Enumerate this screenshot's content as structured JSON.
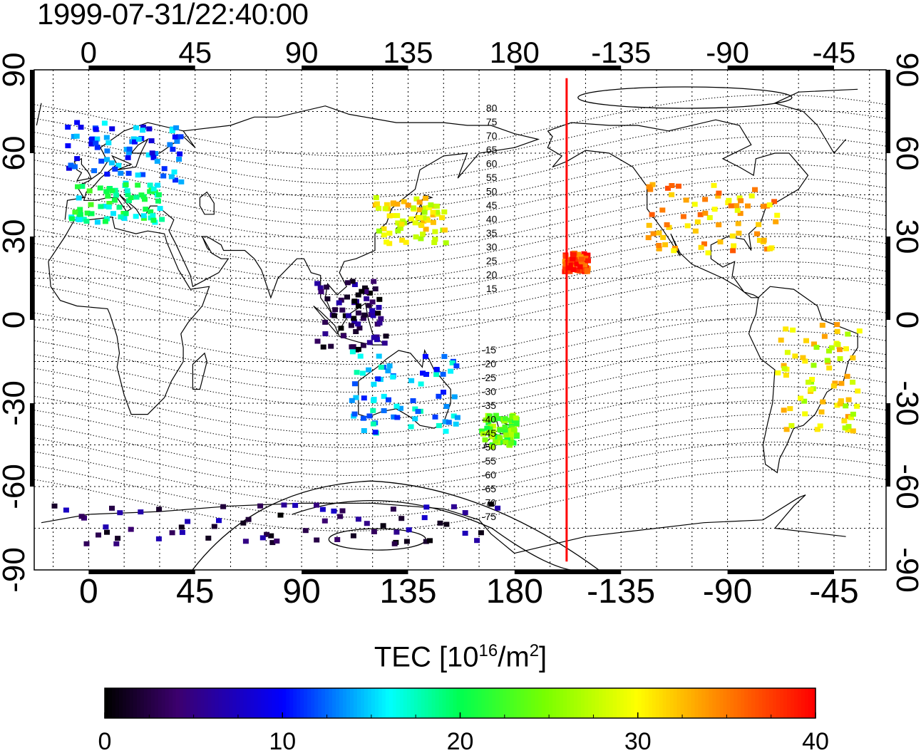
{
  "timestamp": "1999-07-31/22:40:00",
  "colorbar": {
    "label_prefix": "TEC  [10",
    "label_exp": "16",
    "label_mid": "/m",
    "label_exp2": "2",
    "label_suffix": "]",
    "min": 0,
    "max": 40,
    "ticks": [
      "0",
      "10",
      "20",
      "30",
      "40"
    ]
  },
  "map": {
    "lon_range": [
      -23,
      337
    ],
    "lat_range": [
      -90,
      90
    ],
    "lon_ticks": [
      "0",
      "45",
      "90",
      "135",
      "180",
      "-135",
      "-90",
      "-45"
    ],
    "lat_ticks": [
      "90",
      "60",
      "30",
      "0",
      "-30",
      "-60",
      "-90"
    ],
    "marker_lon": -158,
    "marker_color": "#ff0000",
    "contour_labels_north": [
      "80",
      "75",
      "70",
      "65",
      "60",
      "55",
      "50",
      "45",
      "40",
      "35",
      "30",
      "25",
      "20",
      "15"
    ],
    "contour_labels_south": [
      "-15",
      "-20",
      "-25",
      "-30",
      "-35",
      "-40",
      "-45",
      "-50",
      "-55",
      "-60",
      "-65",
      "-70",
      "-75"
    ]
  },
  "chart_data": {
    "type": "heatmap",
    "title": "1999-07-31/22:40:00",
    "colorbar_label": "TEC [10^16/m^2]",
    "value_range": [
      0,
      40
    ],
    "regions": [
      {
        "lon_range": [
          -10,
          40
        ],
        "lat_range": [
          50,
          72
        ],
        "value": 12
      },
      {
        "lon_range": [
          -10,
          30
        ],
        "lat_range": [
          36,
          50
        ],
        "value": 19
      },
      {
        "lon_range": [
          120,
          150
        ],
        "lat_range": [
          28,
          45
        ],
        "value": 30
      },
      {
        "lon_range": [
          -125,
          -70
        ],
        "lat_range": [
          25,
          50
        ],
        "value": 33
      },
      {
        "lon_range": [
          -160,
          -150
        ],
        "lat_range": [
          18,
          25
        ],
        "value": 38
      },
      {
        "lon_range": [
          95,
          125
        ],
        "lat_range": [
          -10,
          15
        ],
        "value": 3
      },
      {
        "lon_range": [
          110,
          155
        ],
        "lat_range": [
          -40,
          -10
        ],
        "value": 14
      },
      {
        "lon_range": [
          165,
          180
        ],
        "lat_range": [
          -45,
          -33
        ],
        "value": 24
      },
      {
        "lon_range": [
          -70,
          -35
        ],
        "lat_range": [
          -40,
          0
        ],
        "value": 30
      },
      {
        "lon_range": [
          -20,
          180
        ],
        "lat_range": [
          -80,
          -65
        ],
        "value": 4
      }
    ]
  }
}
